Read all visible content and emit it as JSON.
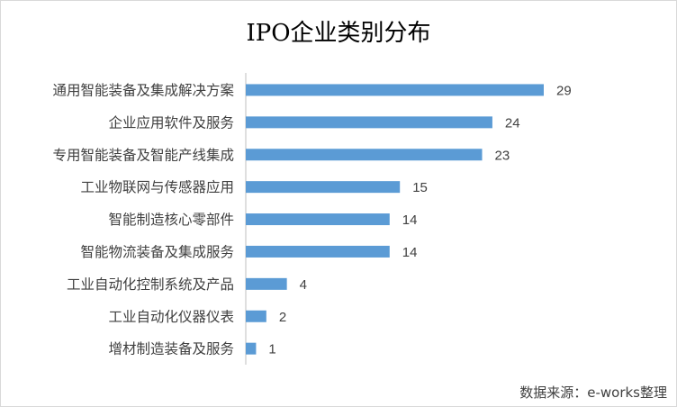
{
  "chart_data": {
    "type": "bar",
    "orientation": "horizontal",
    "title": "IPO企业类别分布",
    "categories": [
      "通用智能装备及集成解决方案",
      "企业应用软件及服务",
      "专用智能装备及智能产线集成",
      "工业物联网与传感器应用",
      "智能制造核心零部件",
      "智能物流装备及集成服务",
      "工业自动化控制系统及产品",
      "工业自动化仪器仪表",
      "增材制造装备及服务"
    ],
    "values": [
      29,
      24,
      23,
      15,
      14,
      14,
      4,
      2,
      1
    ],
    "xlim": [
      0,
      29
    ],
    "bar_color": "#5b9bd5",
    "data_labels": true,
    "grid": false,
    "legend": "none"
  },
  "source": "数据来源：e-works整理"
}
